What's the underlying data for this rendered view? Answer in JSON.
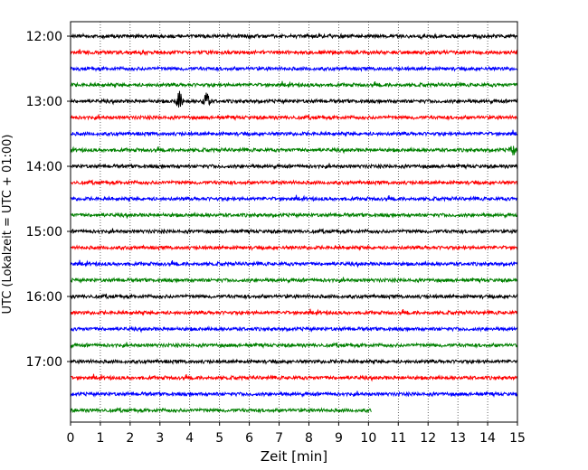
{
  "chart_data": {
    "type": "line",
    "title": "",
    "xlabel": "Zeit  [min]",
    "ylabel": "UTC (Lokalzeit = UTC + 01:00)",
    "xlim": [
      0,
      15
    ],
    "x_ticks": [
      0,
      1,
      2,
      3,
      4,
      5,
      6,
      7,
      8,
      9,
      10,
      11,
      12,
      13,
      14,
      15
    ],
    "x_tick_labels": [
      "0",
      "1",
      "2",
      "3",
      "4",
      "5",
      "6",
      "7",
      "8",
      "9",
      "10",
      "11",
      "12",
      "13",
      "14",
      "15"
    ],
    "y_tick_labels": [
      "12:00",
      "13:00",
      "14:00",
      "15:00",
      "16:00",
      "17:00"
    ],
    "y_tick_rows": [
      0,
      4,
      8,
      12,
      16,
      20
    ],
    "grid": "vertical-dotted",
    "trace_minutes": 15,
    "trace_colors": [
      "#000000",
      "#ff0000",
      "#0000ff",
      "#008000"
    ],
    "series": [
      {
        "start": "12:00",
        "color": "#000000",
        "end_min": 15
      },
      {
        "start": "12:15",
        "color": "#ff0000",
        "end_min": 15
      },
      {
        "start": "12:30",
        "color": "#0000ff",
        "end_min": 15
      },
      {
        "start": "12:45",
        "color": "#008000",
        "end_min": 15
      },
      {
        "start": "13:00",
        "color": "#000000",
        "end_min": 15
      },
      {
        "start": "13:15",
        "color": "#ff0000",
        "end_min": 15
      },
      {
        "start": "13:30",
        "color": "#0000ff",
        "end_min": 15
      },
      {
        "start": "13:45",
        "color": "#008000",
        "end_min": 15
      },
      {
        "start": "14:00",
        "color": "#000000",
        "end_min": 15
      },
      {
        "start": "14:15",
        "color": "#ff0000",
        "end_min": 15
      },
      {
        "start": "14:30",
        "color": "#0000ff",
        "end_min": 15
      },
      {
        "start": "14:45",
        "color": "#008000",
        "end_min": 15
      },
      {
        "start": "15:00",
        "color": "#000000",
        "end_min": 15
      },
      {
        "start": "15:15",
        "color": "#ff0000",
        "end_min": 15
      },
      {
        "start": "15:30",
        "color": "#0000ff",
        "end_min": 15
      },
      {
        "start": "15:45",
        "color": "#008000",
        "end_min": 15
      },
      {
        "start": "16:00",
        "color": "#000000",
        "end_min": 15
      },
      {
        "start": "16:15",
        "color": "#ff0000",
        "end_min": 15
      },
      {
        "start": "16:30",
        "color": "#0000ff",
        "end_min": 15
      },
      {
        "start": "16:45",
        "color": "#008000",
        "end_min": 15
      },
      {
        "start": "17:00",
        "color": "#000000",
        "end_min": 15
      },
      {
        "start": "17:15",
        "color": "#ff0000",
        "end_min": 15
      },
      {
        "start": "17:30",
        "color": "#0000ff",
        "end_min": 15
      },
      {
        "start": "17:45",
        "color": "#008000",
        "end_min": 10.1
      }
    ],
    "events": [
      {
        "row": 4,
        "x_min": 3.65,
        "amplitude": "large"
      },
      {
        "row": 4,
        "x_min": 4.55,
        "amplitude": "large"
      },
      {
        "row": 7,
        "x_min": 14.85,
        "amplitude": "medium"
      }
    ]
  }
}
